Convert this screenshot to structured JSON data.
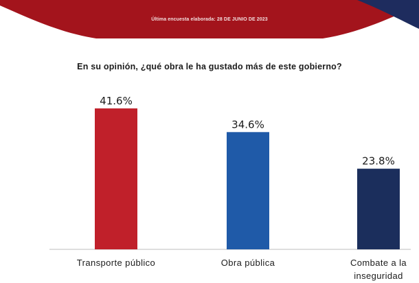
{
  "header": {
    "subtitle": "Última encuesta elaborada: 28 DE JUNIO DE 2023",
    "colors": {
      "red": "#a3141c",
      "navy": "#1e2c5e"
    }
  },
  "question": "En su opinión, ¿qué obra le ha gustado más de este gobierno?",
  "chart_data": {
    "type": "bar",
    "title": "En su opinión, ¿qué obra le ha gustado más de este gobierno?",
    "categories": [
      "Transporte público",
      "Obra pública",
      "Combate a la inseguridad"
    ],
    "category_lines": [
      [
        "Transporte público"
      ],
      [
        "Obra pública"
      ],
      [
        "Combate a la",
        "inseguridad"
      ]
    ],
    "values": [
      41.6,
      34.6,
      23.8
    ],
    "value_labels": [
      "41.6%",
      "34.6%",
      "23.8%"
    ],
    "colors": [
      "#c0202a",
      "#1f5aa8",
      "#1b2e5c"
    ],
    "ylim": [
      0,
      45
    ],
    "grid": false,
    "legend": "none",
    "xlabel": "",
    "ylabel": ""
  }
}
